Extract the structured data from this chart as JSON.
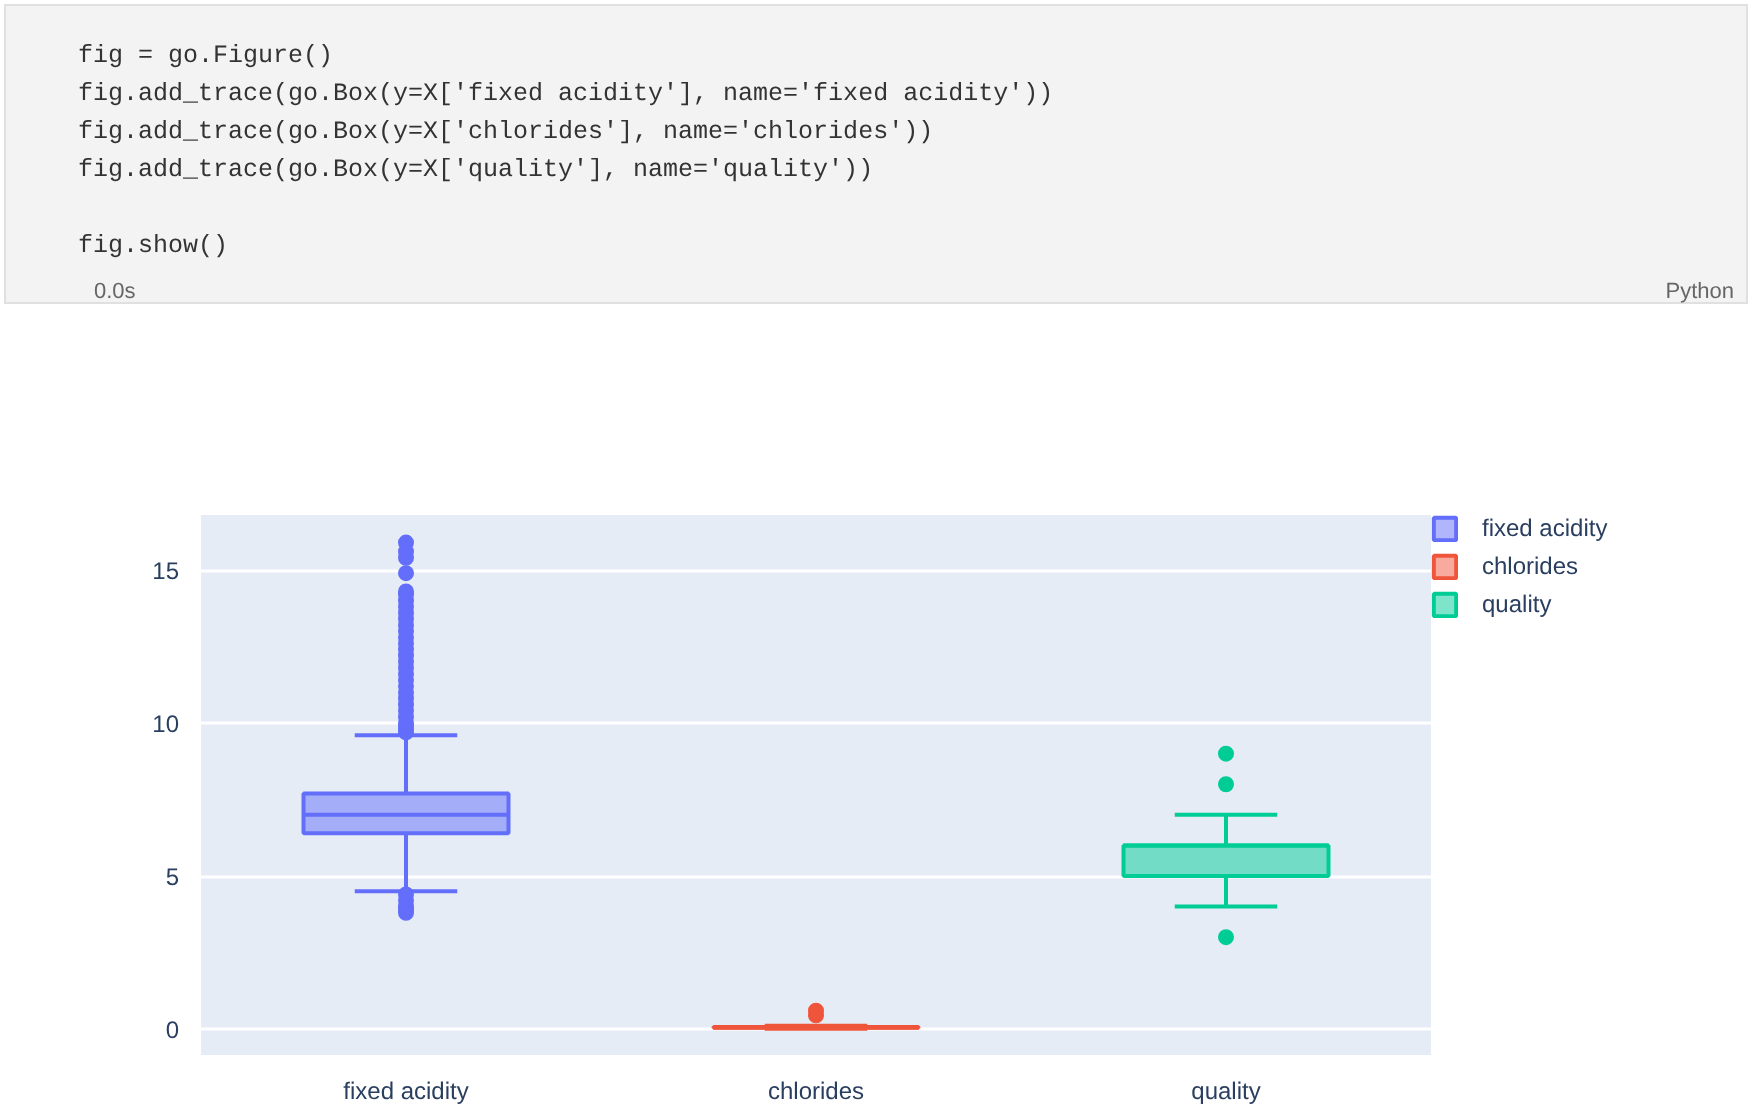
{
  "chart_data": {
    "type": "box",
    "categories": [
      "fixed acidity",
      "chlorides",
      "quality"
    ],
    "series": [
      {
        "name": "fixed acidity",
        "color": "#636efa",
        "boxes": [
          {
            "low": 4.5,
            "q1": 6.4,
            "median": 7.0,
            "q3": 7.7,
            "high": 9.6,
            "outliers": [
              3.8,
              3.9,
              4.0,
              4.2,
              4.4,
              9.7,
              9.8,
              9.9,
              10.0,
              10.2,
              10.4,
              10.6,
              10.8,
              11.0,
              11.2,
              11.4,
              11.6,
              11.8,
              12.0,
              12.2,
              12.4,
              12.6,
              12.8,
              13.0,
              13.2,
              13.4,
              13.6,
              13.8,
              14.0,
              14.2,
              14.3,
              14.9,
              15.4,
              15.6,
              15.9
            ]
          },
          null,
          null
        ]
      },
      {
        "name": "chlorides",
        "color": "#ef553b",
        "boxes": [
          null,
          {
            "low": 0.01,
            "q1": 0.04,
            "median": 0.05,
            "q3": 0.065,
            "high": 0.11,
            "outliers": [
              0.45,
              0.6
            ]
          },
          null
        ]
      },
      {
        "name": "quality",
        "color": "#00cc96",
        "boxes": [
          null,
          null,
          {
            "low": 4,
            "q1": 5,
            "median": 6,
            "q3": 6,
            "high": 7,
            "outliers": [
              3,
              8,
              9
            ]
          }
        ]
      }
    ],
    "ylim": [
      -0.85,
      16.8
    ],
    "yticks": [
      0,
      5,
      10,
      15
    ],
    "grid": "y",
    "legend": "top right",
    "marker": "circle",
    "annotations": [
      "fig = go.Figure()",
      "fig.add_trace(go.Box(y=X['fixed acidity'], name='fixed acidity'))",
      "fig.add_trace(go.Box(y=X['chlorides'], name='chlorides'))",
      "fig.add_trace(go.Box(y=X['quality'], name='quality'))",
      "fig.show()",
      "0.0s",
      "Python"
    ]
  }
}
